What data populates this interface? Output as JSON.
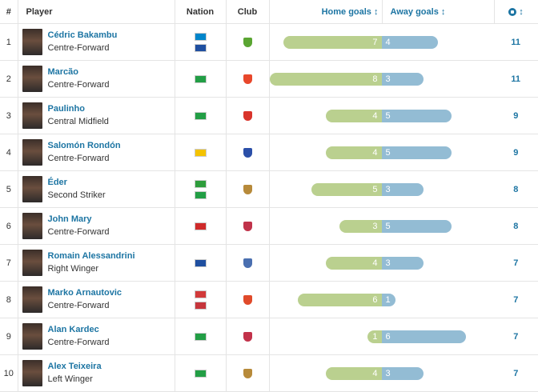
{
  "header": {
    "num": "#",
    "player": "Player",
    "nation": "Nation",
    "club": "Club",
    "home_goals": "Home goals",
    "away_goals": "Away goals",
    "sort_glyph": "↕",
    "total_icon": "football-icon"
  },
  "rows": [
    {
      "rank": "1",
      "name": "Cédric Bakambu",
      "position": "Centre-Forward",
      "flags": [
        "#0085ca",
        "#1f4fa0"
      ],
      "club_color": "#5aa532",
      "home": 7,
      "away": 4,
      "home_label": "7",
      "away_label": "4",
      "total": "11"
    },
    {
      "rank": "2",
      "name": "Marcão",
      "position": "Centre-Forward",
      "flags": [
        "#229e45"
      ],
      "club_color": "#e8472b",
      "home": 8,
      "away": 3,
      "home_label": "8",
      "away_label": "3",
      "total": "11"
    },
    {
      "rank": "3",
      "name": "Paulinho",
      "position": "Central Midfield",
      "flags": [
        "#229e45"
      ],
      "club_color": "#d9342b",
      "home": 4,
      "away": 5,
      "home_label": "4",
      "away_label": "5",
      "total": "9"
    },
    {
      "rank": "4",
      "name": "Salomón Rondón",
      "position": "Centre-Forward",
      "flags": [
        "#f4c300"
      ],
      "club_color": "#2b4fa8",
      "home": 4,
      "away": 5,
      "home_label": "4",
      "away_label": "5",
      "total": "9"
    },
    {
      "rank": "5",
      "name": "Éder",
      "position": "Second Striker",
      "flags": [
        "#2e9d3c",
        "#229e45"
      ],
      "club_color": "#b78a3a",
      "home": 5,
      "away": 3,
      "home_label": "5",
      "away_label": "3",
      "total": "8"
    },
    {
      "rank": "6",
      "name": "John Mary",
      "position": "Centre-Forward",
      "flags": [
        "#cf2a2a"
      ],
      "club_color": "#c0334a",
      "home": 3,
      "away": 5,
      "home_label": "3",
      "away_label": "5",
      "total": "8"
    },
    {
      "rank": "7",
      "name": "Romain Alessandrini",
      "position": "Right Winger",
      "flags": [
        "#1f4fa0"
      ],
      "club_color": "#4a6fb0",
      "home": 4,
      "away": 3,
      "home_label": "4",
      "away_label": "3",
      "total": "7"
    },
    {
      "rank": "8",
      "name": "Marko Arnautovic",
      "position": "Centre-Forward",
      "flags": [
        "#d23a3a",
        "#c6363c"
      ],
      "club_color": "#e04a2a",
      "home": 6,
      "away": 1,
      "home_label": "6",
      "away_label": "1",
      "total": "7"
    },
    {
      "rank": "9",
      "name": "Alan Kardec",
      "position": "Centre-Forward",
      "flags": [
        "#229e45"
      ],
      "club_color": "#c2324a",
      "home": 1,
      "away": 6,
      "home_label": "1",
      "away_label": "6",
      "total": "7"
    },
    {
      "rank": "10",
      "name": "Alex Teixeira",
      "position": "Left Winger",
      "flags": [
        "#229e45"
      ],
      "club_color": "#b78a3a",
      "home": 4,
      "away": 3,
      "home_label": "4",
      "away_label": "3",
      "total": "7"
    }
  ]
}
